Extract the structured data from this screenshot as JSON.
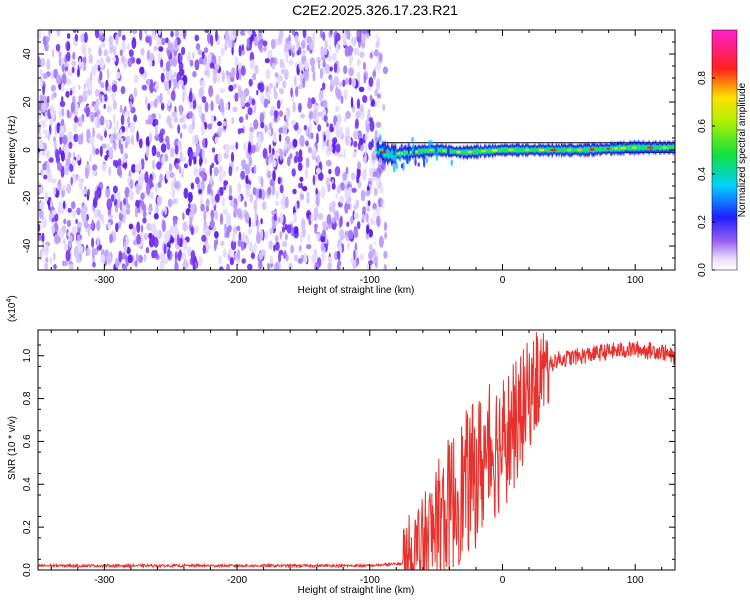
{
  "title": "C2E2.2025.326.17.23.R21",
  "chart_data": [
    {
      "type": "heatmap",
      "xlabel": "Height of straight line (km)",
      "ylabel": "Frequency (Hz)",
      "xlim": [
        -350,
        130
      ],
      "ylim": [
        -50,
        50
      ],
      "xticks": [
        -300,
        -200,
        -100,
        0,
        100
      ],
      "yticks": [
        -40,
        -20,
        0,
        20,
        40
      ],
      "xtick_labels": [
        "-300",
        "-200",
        "-100",
        "0",
        "100"
      ],
      "ytick_labels": [
        "-40",
        "-20",
        "0",
        "20",
        "40"
      ],
      "noise_region_km": [
        -350,
        -88
      ],
      "signal_region_km": [
        -95,
        130
      ],
      "signal_center_freq_hz": [
        [
          -95,
          0
        ],
        [
          -85,
          -2
        ],
        [
          -70,
          -1
        ],
        [
          -50,
          0
        ],
        [
          -30,
          -1
        ],
        [
          0,
          0
        ],
        [
          30,
          0
        ],
        [
          60,
          0
        ],
        [
          100,
          1
        ],
        [
          130,
          1
        ]
      ],
      "colorbar": {
        "label": "Normalized spectral amplitude",
        "range": [
          0.0,
          1.0
        ],
        "ticks": [
          0.0,
          0.2,
          0.4,
          0.6,
          0.8
        ],
        "tick_labels": [
          "0.0",
          "0.2",
          "0.4",
          "0.6",
          "0.8"
        ]
      }
    },
    {
      "type": "line",
      "xlabel": "Height of straight line (km)",
      "ylabel": "SNR (10 * v/v)",
      "scale_label": "(x10",
      "scale_exponent": "4",
      "scale_close": ")",
      "xlim": [
        -350,
        130
      ],
      "ylim": [
        0,
        1.12
      ],
      "xticks": [
        -300,
        -200,
        -100,
        0,
        100
      ],
      "yticks": [
        0.0,
        0.2,
        0.4,
        0.6,
        0.8,
        1.0
      ],
      "xtick_labels": [
        "-300",
        "-200",
        "-100",
        "0",
        "100"
      ],
      "ytick_labels": [
        "0.0",
        "0.2",
        "0.4",
        "0.6",
        "0.8",
        "1.0"
      ],
      "series": [
        {
          "name": "SNR",
          "color": "#e8302c",
          "envelope_x": [
            -350,
            -200,
            -100,
            -75,
            -60,
            -50,
            -40,
            -30,
            -20,
            -10,
            0,
            10,
            20,
            30,
            40,
            60,
            80,
            100,
            120,
            130
          ],
          "envelope_y": [
            0.02,
            0.02,
            0.02,
            0.03,
            0.08,
            0.2,
            0.3,
            0.38,
            0.45,
            0.55,
            0.6,
            0.68,
            0.82,
            0.92,
            0.98,
            1.0,
            1.02,
            1.03,
            1.02,
            0.99
          ]
        }
      ]
    }
  ]
}
